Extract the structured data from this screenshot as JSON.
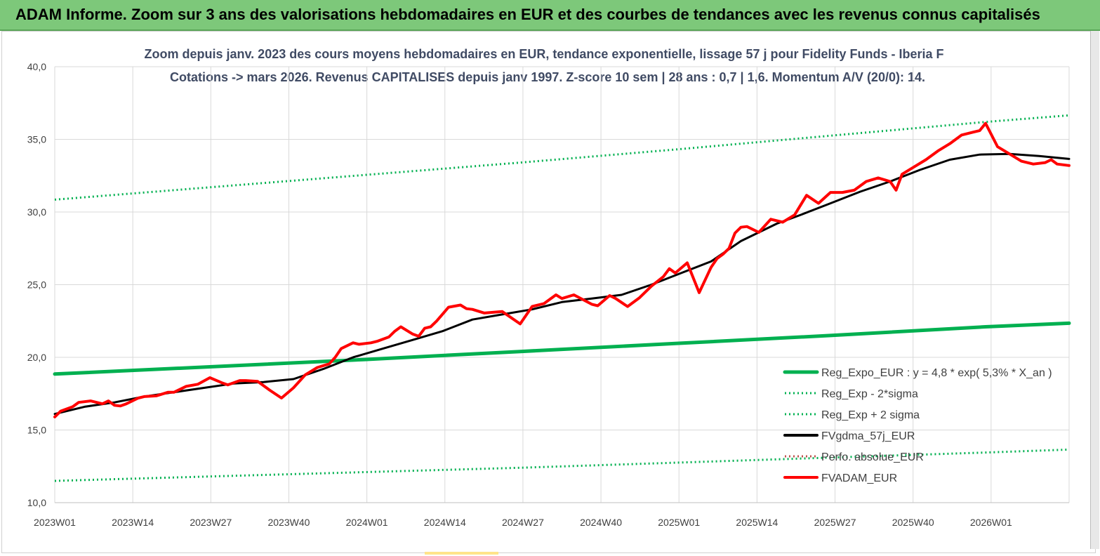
{
  "banner": {
    "title": "ADAM Informe. Zoom sur 3 ans des valorisations hebdomadaires en EUR et des courbes de tendances avec les revenus connus capitalisés"
  },
  "colors": {
    "banner": "#7dc87a",
    "trend": "#00b050",
    "smooth": "#000000",
    "price": "#ff0000",
    "title": "#404b64",
    "grid": "#d9d9d9"
  },
  "chart_data": {
    "type": "line",
    "title_line1": "Zoom depuis janv. 2023 des cours moyens hebdomadaires en EUR, tendance exponentielle, lissage 57 j pour Fidelity Funds - Iberia F",
    "title_line2": "Cotations -> mars 2026. Revenus CAPITALISES depuis janv 1997. Z-score 10 sem | 28 ans : 0,7 | 1,6. Momentum A/V (20/0): 14.",
    "ylim": [
      10,
      40
    ],
    "yticks": [
      "10,0",
      "15,0",
      "20,0",
      "25,0",
      "30,0",
      "35,0",
      "40,0"
    ],
    "xticks": [
      "2023W01",
      "2023W14",
      "2023W27",
      "2023W40",
      "2024W01",
      "2024W14",
      "2024W27",
      "2024W40",
      "2025W01",
      "2025W14",
      "2025W27",
      "2025W40",
      "2026W01"
    ],
    "x_weeks": [
      0,
      170
    ],
    "grid": true,
    "legend_position": "bottom-right",
    "legend": [
      {
        "label": "Reg_Expo_EUR : y = 4,8 * exp( 5,3% *  X_an )",
        "color": "#00b050",
        "style": "solid"
      },
      {
        "label": "Reg_Exp - 2*sigma",
        "color": "#00b050",
        "style": "dotted"
      },
      {
        "label": "Reg_Exp + 2 sigma",
        "color": "#00b050",
        "style": "dotted"
      },
      {
        "label": "FVgdma_57j_EUR",
        "color": "#000000",
        "style": "solid"
      },
      {
        "label": "Perfo. absolue_EUR",
        "color": "#c0504d",
        "style": "dotted"
      },
      {
        "label": "FVADAM_EUR",
        "color": "#ff0000",
        "style": "solid"
      }
    ],
    "series": [
      {
        "name": "Reg_Expo_EUR : y = 4,8 * exp( 5,3% *  X_an )",
        "color": "#00b050",
        "style": "solid",
        "width": 5,
        "x": [
          0,
          26,
          52,
          78,
          104,
          130,
          156,
          170
        ],
        "values": [
          18.85,
          19.35,
          19.85,
          20.4,
          20.95,
          21.5,
          22.1,
          22.35
        ]
      },
      {
        "name": "Reg_Exp - 2*sigma",
        "color": "#00b050",
        "style": "dotted",
        "width": 3,
        "x": [
          0,
          26,
          52,
          78,
          104,
          130,
          156,
          170
        ],
        "values": [
          11.5,
          11.8,
          12.1,
          12.4,
          12.75,
          13.1,
          13.45,
          13.65
        ]
      },
      {
        "name": "Reg_Exp + 2 sigma",
        "color": "#00b050",
        "style": "dotted",
        "width": 3,
        "x": [
          0,
          26,
          52,
          78,
          104,
          130,
          156,
          170
        ],
        "values": [
          30.85,
          31.7,
          32.55,
          33.4,
          34.3,
          35.25,
          36.2,
          36.65
        ]
      },
      {
        "name": "FVgdma_57j_EUR",
        "color": "#000000",
        "style": "solid",
        "width": 3,
        "x": [
          0,
          5,
          10,
          15,
          20,
          25,
          30,
          35,
          40,
          45,
          50,
          55,
          60,
          65,
          70,
          75,
          80,
          85,
          90,
          95,
          100,
          105,
          110,
          115,
          118,
          121,
          125,
          130,
          135,
          140,
          145,
          150,
          155,
          160,
          165,
          170
        ],
        "values": [
          16.1,
          16.6,
          16.9,
          17.3,
          17.6,
          17.9,
          18.2,
          18.3,
          18.5,
          19.2,
          20.0,
          20.6,
          21.2,
          21.8,
          22.6,
          22.95,
          23.3,
          23.8,
          24.05,
          24.3,
          25.0,
          25.8,
          26.6,
          28.0,
          28.6,
          29.2,
          29.8,
          30.6,
          31.4,
          32.1,
          32.9,
          33.6,
          33.95,
          34.0,
          33.85,
          33.65
        ]
      },
      {
        "name": "FVADAM_EUR",
        "color": "#ff0000",
        "style": "solid",
        "width": 4,
        "x": [
          0,
          1,
          3,
          4,
          6,
          8,
          9,
          10,
          11,
          12,
          13,
          14,
          15,
          17,
          19,
          20,
          22,
          24,
          26,
          28,
          29,
          31,
          32,
          34,
          36,
          38,
          40,
          42,
          44,
          46,
          47,
          48,
          50,
          51,
          53,
          54,
          56,
          57,
          58,
          60,
          61,
          62,
          63,
          64,
          66,
          68,
          69,
          70,
          72,
          75,
          78,
          80,
          82,
          84,
          85,
          87,
          90,
          91,
          93,
          94,
          96,
          98,
          100,
          102,
          103,
          104,
          106,
          108,
          110,
          111,
          112,
          113,
          114,
          115,
          116,
          118,
          120,
          122,
          124,
          126,
          128,
          130,
          132,
          134,
          136,
          138,
          140,
          141,
          142,
          144,
          146,
          148,
          150,
          152,
          154,
          155,
          156,
          158,
          160,
          162,
          164,
          166,
          167,
          168,
          170
        ],
        "values": [
          15.9,
          16.3,
          16.6,
          16.9,
          17.0,
          16.8,
          17.0,
          16.7,
          16.65,
          16.8,
          17.0,
          17.2,
          17.3,
          17.35,
          17.6,
          17.6,
          18.0,
          18.15,
          18.6,
          18.25,
          18.1,
          18.4,
          18.4,
          18.35,
          17.75,
          17.2,
          17.9,
          18.8,
          19.3,
          19.55,
          20.0,
          20.6,
          21.0,
          20.9,
          21.0,
          21.1,
          21.4,
          21.8,
          22.1,
          21.6,
          21.45,
          22.0,
          22.1,
          22.5,
          23.45,
          23.6,
          23.35,
          23.3,
          23.05,
          23.15,
          22.3,
          23.5,
          23.7,
          24.3,
          24.05,
          24.3,
          23.65,
          23.55,
          24.25,
          24.05,
          23.5,
          24.1,
          24.9,
          25.55,
          26.1,
          25.8,
          26.5,
          24.45,
          26.2,
          26.8,
          27.1,
          27.5,
          28.55,
          28.95,
          29.0,
          28.6,
          29.5,
          29.3,
          29.8,
          31.15,
          30.6,
          31.35,
          31.35,
          31.5,
          32.1,
          32.35,
          32.1,
          31.5,
          32.6,
          33.1,
          33.6,
          34.2,
          34.7,
          35.3,
          35.5,
          35.6,
          36.1,
          34.5,
          34.0,
          33.5,
          33.3,
          33.4,
          33.6,
          33.3,
          33.2
        ]
      }
    ]
  }
}
